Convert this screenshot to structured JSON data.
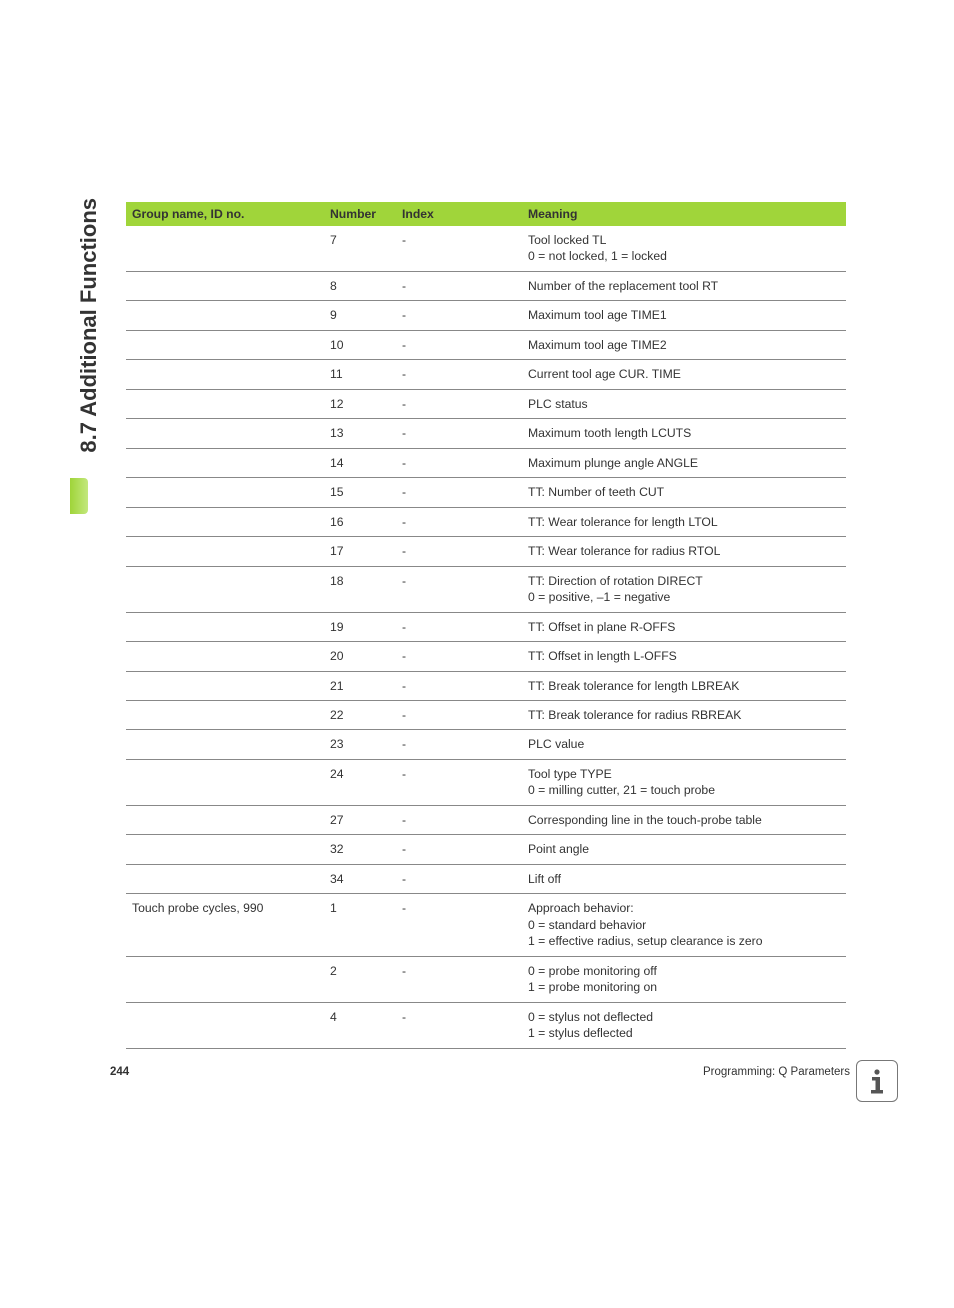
{
  "side_tab": "8.7 Additional Functions",
  "table": {
    "headers": {
      "group": "Group name, ID no.",
      "number": "Number",
      "index": "Index",
      "meaning": "Meaning"
    },
    "rows": [
      {
        "group": "",
        "number": "7",
        "index": "-",
        "meaning": "Tool locked TL\n0 = not locked, 1 = locked"
      },
      {
        "group": "",
        "number": "8",
        "index": "-",
        "meaning": "Number of the replacement tool RT"
      },
      {
        "group": "",
        "number": "9",
        "index": "-",
        "meaning": "Maximum tool age TIME1"
      },
      {
        "group": "",
        "number": "10",
        "index": "-",
        "meaning": "Maximum tool age TIME2"
      },
      {
        "group": "",
        "number": "11",
        "index": "-",
        "meaning": "Current tool age CUR. TIME"
      },
      {
        "group": "",
        "number": "12",
        "index": "-",
        "meaning": "PLC status"
      },
      {
        "group": "",
        "number": "13",
        "index": "-",
        "meaning": "Maximum tooth length LCUTS"
      },
      {
        "group": "",
        "number": "14",
        "index": "-",
        "meaning": "Maximum plunge angle ANGLE"
      },
      {
        "group": "",
        "number": "15",
        "index": "-",
        "meaning": "TT: Number of teeth CUT"
      },
      {
        "group": "",
        "number": "16",
        "index": "-",
        "meaning": "TT: Wear tolerance for length LTOL"
      },
      {
        "group": "",
        "number": "17",
        "index": "-",
        "meaning": "TT: Wear tolerance for radius RTOL"
      },
      {
        "group": "",
        "number": "18",
        "index": "-",
        "meaning": "TT: Direction of rotation DIRECT\n0 = positive, –1 = negative"
      },
      {
        "group": "",
        "number": "19",
        "index": "-",
        "meaning": "TT: Offset in plane R-OFFS"
      },
      {
        "group": "",
        "number": "20",
        "index": "-",
        "meaning": "TT: Offset in length L-OFFS"
      },
      {
        "group": "",
        "number": "21",
        "index": "-",
        "meaning": "TT: Break tolerance for length LBREAK"
      },
      {
        "group": "",
        "number": "22",
        "index": "-",
        "meaning": "TT: Break tolerance for radius RBREAK"
      },
      {
        "group": "",
        "number": "23",
        "index": "-",
        "meaning": "PLC value"
      },
      {
        "group": "",
        "number": "24",
        "index": "-",
        "meaning": "Tool type TYPE\n0 = milling cutter, 21 = touch probe"
      },
      {
        "group": "",
        "number": "27",
        "index": "-",
        "meaning": "Corresponding line in the touch-probe table"
      },
      {
        "group": "",
        "number": "32",
        "index": "-",
        "meaning": "Point angle"
      },
      {
        "group": "",
        "number": "34",
        "index": "-",
        "meaning": "Lift off"
      },
      {
        "group": "Touch probe cycles, 990",
        "number": "1",
        "index": "-",
        "meaning": "Approach behavior:\n0 = standard behavior\n1 = effective radius, setup clearance is zero",
        "section_start": true
      },
      {
        "group": "",
        "number": "2",
        "index": "-",
        "meaning": "0 = probe monitoring off\n1 = probe monitoring on"
      },
      {
        "group": "",
        "number": "4",
        "index": "-",
        "meaning": "0 = stylus not deflected\n1 = stylus deflected"
      }
    ]
  },
  "footer": {
    "page_number": "244",
    "section_label": "Programming: Q Parameters"
  },
  "colors": {
    "header_bg": "#a0d53a",
    "border": "#888",
    "section_border": "#333",
    "text": "#333"
  }
}
